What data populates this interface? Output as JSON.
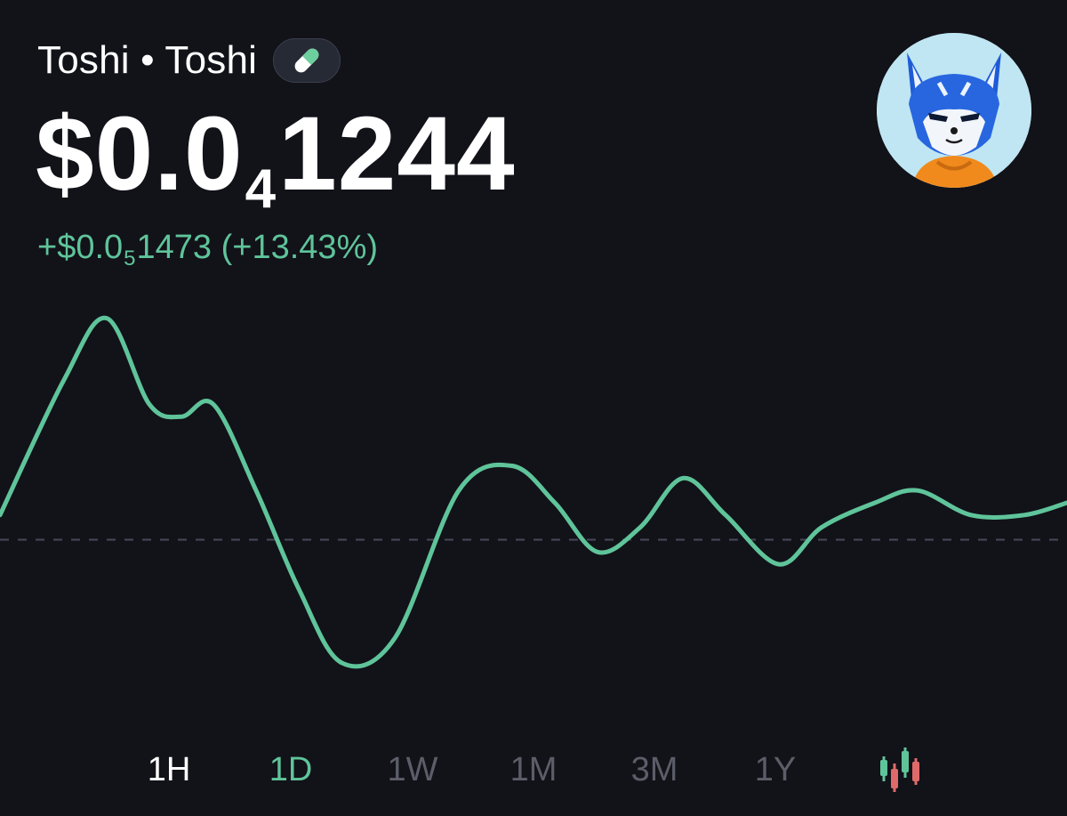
{
  "header": {
    "token_name": "Toshi",
    "separator": "•",
    "token_symbol": "Toshi",
    "badge_icon": "pill-icon",
    "avatar_icon": "fox-avatar-icon"
  },
  "price": {
    "prefix": "$0.0",
    "zero_count": "4",
    "digits": "1244"
  },
  "change": {
    "prefix": "+$0.0",
    "zero_count": "5",
    "digits": "1473",
    "percent": "(+13.43%)",
    "color": "#5fc49a"
  },
  "chart_data": {
    "type": "line",
    "title": "",
    "xlabel": "",
    "ylabel": "",
    "grid": false,
    "legend": "none",
    "baseline_style": "dashed",
    "color": "#5fc49a",
    "x": [
      0,
      6,
      10,
      14,
      17,
      20,
      24,
      28,
      32,
      37,
      43,
      48,
      52,
      56,
      60,
      64,
      68,
      73,
      77,
      82,
      86,
      91,
      96,
      100
    ],
    "y": [
      0.1,
      0.65,
      0.9,
      0.55,
      0.5,
      0.55,
      0.2,
      -0.2,
      -0.5,
      -0.4,
      0.2,
      0.3,
      0.15,
      -0.05,
      0.05,
      0.25,
      0.1,
      -0.1,
      0.05,
      0.15,
      0.2,
      0.1,
      0.1,
      0.15
    ],
    "baseline": 0,
    "ylim": [
      -0.7,
      1.0
    ]
  },
  "range_tabs": [
    {
      "label": "1H",
      "state": "hover"
    },
    {
      "label": "1D",
      "state": "selected"
    },
    {
      "label": "1W",
      "state": "default"
    },
    {
      "label": "1M",
      "state": "default"
    },
    {
      "label": "3M",
      "state": "default"
    },
    {
      "label": "1Y",
      "state": "default"
    }
  ],
  "chart_type_toggle": {
    "icon": "candlestick-icon",
    "up_color": "#5fc49a",
    "down_color": "#e06a6a"
  }
}
